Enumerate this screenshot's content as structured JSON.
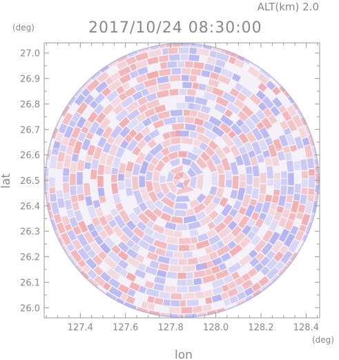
{
  "header": {
    "altitude_label": "ALT(km) 2.0",
    "timestamp": "2017/10/24 08:30:00",
    "lat_unit": "(deg)",
    "lon_unit": "(deg)"
  },
  "chart_data": {
    "type": "heatmap",
    "title": "2017/10/24 08:30:00",
    "subtitle": "ALT(km) 2.0",
    "xlabel": "lon",
    "ylabel": "lat",
    "xlim": [
      127.24,
      128.46
    ],
    "ylim": [
      25.96,
      27.04
    ],
    "x_ticks": [
      "127.4",
      "127.6",
      "127.8",
      "128.0",
      "128.2",
      "128.4"
    ],
    "x_tick_values": [
      127.4,
      127.6,
      127.8,
      128.0,
      128.2,
      128.4
    ],
    "y_ticks": [
      "26.0",
      "26.1",
      "26.2",
      "26.3",
      "26.4",
      "26.5",
      "26.6",
      "26.7",
      "26.8",
      "26.9",
      "27.0"
    ],
    "y_tick_values": [
      26.0,
      26.1,
      26.2,
      26.3,
      26.4,
      26.5,
      26.6,
      26.7,
      26.8,
      26.9,
      27.0
    ],
    "radar_center": {
      "lon": 127.85,
      "lat": 26.5
    },
    "radar_range_deg_lat": 0.54,
    "colors": {
      "positive": "#f2a0a0",
      "negative": "#a8a8f0",
      "frame": "#999999",
      "text": "#888888"
    },
    "grid": false
  }
}
